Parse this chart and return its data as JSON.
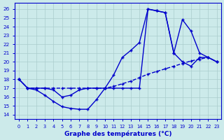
{
  "title": "Graphe des températures (°C)",
  "bg_color": "#cceaea",
  "line_color": "#0000cc",
  "grid_color": "#aacccc",
  "xlim": [
    -0.5,
    23.5
  ],
  "ylim": [
    13.5,
    26.7
  ],
  "xticks": [
    0,
    1,
    2,
    3,
    4,
    5,
    6,
    7,
    8,
    9,
    10,
    11,
    12,
    13,
    14,
    15,
    16,
    17,
    18,
    19,
    20,
    21,
    22,
    23
  ],
  "yticks": [
    14,
    15,
    16,
    17,
    18,
    19,
    20,
    21,
    22,
    23,
    24,
    25,
    26
  ],
  "curve_a_x": [
    0,
    1,
    2,
    3,
    4,
    5,
    6,
    7,
    8,
    9,
    10,
    11,
    12,
    13,
    14,
    15,
    16,
    17,
    18,
    19,
    20,
    21,
    22,
    23
  ],
  "curve_a_y": [
    18,
    17,
    16.8,
    16.2,
    15.5,
    14.9,
    14.7,
    14.6,
    14.6,
    15.7,
    17.0,
    18.5,
    20.5,
    21.3,
    22.2,
    26.0,
    25.8,
    25.6,
    21.0,
    20.0,
    19.5,
    20.5,
    20.5,
    20.0
  ],
  "curve_b_x": [
    0,
    1,
    2,
    3,
    4,
    5,
    6,
    7,
    8,
    9,
    10,
    11,
    12,
    13,
    14,
    15,
    16,
    17,
    18,
    19,
    20,
    21,
    22,
    23
  ],
  "curve_b_y": [
    18,
    17,
    17.0,
    17.0,
    16.8,
    16.0,
    16.2,
    16.8,
    17.0,
    17.0,
    17.0,
    17.0,
    17.0,
    17.0,
    17.0,
    26.0,
    25.8,
    25.6,
    21.0,
    24.8,
    23.5,
    21.0,
    20.5,
    20.0
  ],
  "curve_c_x": [
    0,
    1,
    2,
    3,
    4,
    5,
    6,
    7,
    8,
    9,
    10,
    11,
    12,
    13,
    14,
    15,
    16,
    17,
    18,
    19,
    20,
    21,
    22,
    23
  ],
  "curve_c_y": [
    18,
    17,
    17.0,
    17.0,
    17.0,
    17.0,
    17.0,
    17.0,
    17.0,
    17.0,
    17.0,
    17.2,
    17.5,
    17.8,
    18.2,
    18.6,
    18.9,
    19.2,
    19.5,
    19.8,
    20.1,
    20.3,
    20.5,
    20.0
  ]
}
